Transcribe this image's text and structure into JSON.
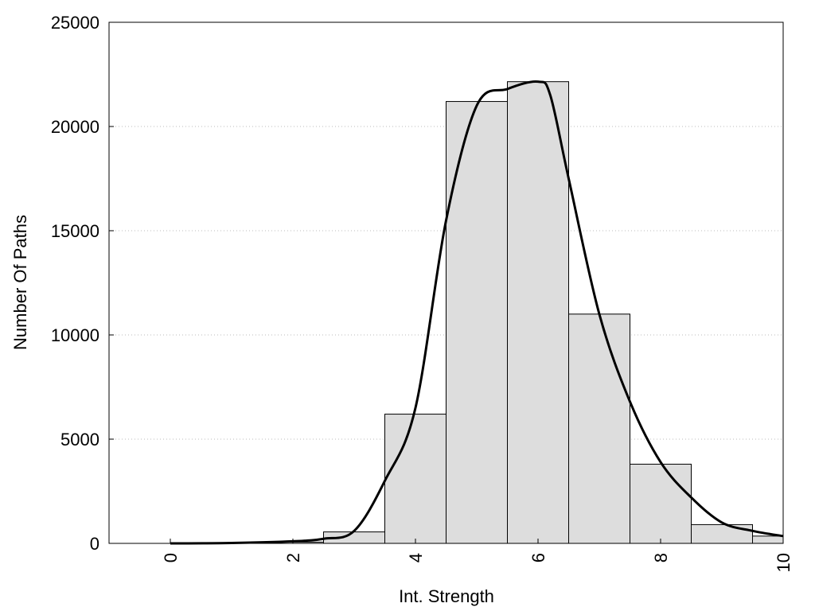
{
  "chart_data": {
    "type": "bar",
    "title": "",
    "xlabel": "Int. Strength",
    "ylabel": "Number Of Paths",
    "xlim": [
      -1,
      10
    ],
    "ylim": [
      0,
      25000
    ],
    "x_ticks": [
      0,
      2,
      4,
      6,
      8,
      10
    ],
    "y_ticks": [
      0,
      5000,
      10000,
      15000,
      20000,
      25000
    ],
    "grid": "horizontal dotted",
    "legend": "none",
    "colors": {
      "bar_fill": "#dddddd",
      "bar_stroke": "#000000",
      "curve": "#000000",
      "grid": "#bbbbbb"
    },
    "bins": [
      {
        "x": 0,
        "value": 0
      },
      {
        "x": 1,
        "value": 0
      },
      {
        "x": 2,
        "value": 60
      },
      {
        "x": 3,
        "value": 550
      },
      {
        "x": 4,
        "value": 6200
      },
      {
        "x": 5,
        "value": 21200
      },
      {
        "x": 6,
        "value": 22150
      },
      {
        "x": 7,
        "value": 11000
      },
      {
        "x": 8,
        "value": 3800
      },
      {
        "x": 9,
        "value": 900
      },
      {
        "x": 10,
        "value": 350
      }
    ],
    "bin_width": 1,
    "density_curve": {
      "x": [
        0,
        1,
        2,
        2.5,
        3,
        3.5,
        4,
        4.5,
        5,
        5.5,
        6,
        6.2,
        6.5,
        7,
        7.5,
        8,
        8.5,
        9,
        9.5,
        10
      ],
      "y": [
        0,
        20,
        100,
        220,
        600,
        3000,
        6500,
        15500,
        21000,
        21800,
        22150,
        21500,
        17500,
        11000,
        6800,
        3900,
        2200,
        1000,
        600,
        350
      ]
    }
  }
}
